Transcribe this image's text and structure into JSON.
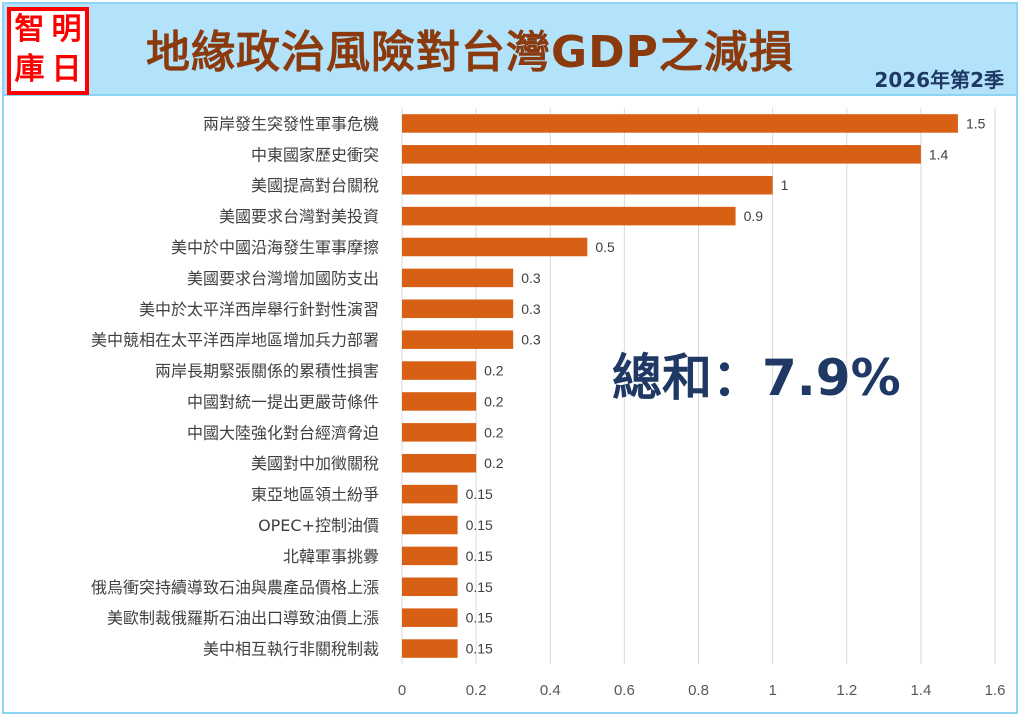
{
  "header": {
    "logo_chars": [
      "智",
      "明",
      "庫",
      "日"
    ],
    "title": "地緣政治風險對台灣GDP之減損",
    "subtitle": "2026年第2季"
  },
  "annotation": {
    "total_text": "總和：7.9%"
  },
  "colors": {
    "bar": "#d86015",
    "title": "#8b3a0e",
    "annotation": "#1f3864",
    "header_bg": "#b3e3fa",
    "logo": "#ff0000"
  },
  "chart_data": {
    "type": "bar",
    "orientation": "horizontal",
    "title": "地緣政治風險對台灣GDP之減損",
    "subtitle": "2026年第2季",
    "xlabel": "",
    "ylabel": "",
    "xlim": [
      0,
      1.6
    ],
    "xticks": [
      "0",
      "0.2",
      "0.4",
      "0.6",
      "0.8",
      "1",
      "1.2",
      "1.4",
      "1.6"
    ],
    "grid": "vertical",
    "legend": "none",
    "categories": [
      "兩岸發生突發性軍事危機",
      "中東國家歷史衝突",
      "美國提高對台關稅",
      "美國要求台灣對美投資",
      "美中於中國沿海發生軍事摩擦",
      "美國要求台灣增加國防支出",
      "美中於太平洋西岸舉行針對性演習",
      "美中競相在太平洋西岸地區增加兵力部署",
      "兩岸長期緊張關係的累積性損害",
      "中國對統一提出更嚴苛條件",
      "中國大陸強化對台經濟脅迫",
      "美國對中加徵關稅",
      "東亞地區領土紛爭",
      "OPEC+控制油價",
      "北韓軍事挑釁",
      "俄烏衝突持續導致石油與農產品價格上漲",
      "美歐制裁俄羅斯石油出口導致油價上漲",
      "美中相互執行非關稅制裁"
    ],
    "values": [
      1.5,
      1.4,
      1,
      0.9,
      0.5,
      0.3,
      0.3,
      0.3,
      0.2,
      0.2,
      0.2,
      0.2,
      0.15,
      0.15,
      0.15,
      0.15,
      0.15,
      0.15
    ],
    "data_labels": [
      "1.5",
      "1.4",
      "1",
      "0.9",
      "0.5",
      "0.3",
      "0.3",
      "0.3",
      "0.2",
      "0.2",
      "0.2",
      "0.2",
      "0.15",
      "0.15",
      "0.15",
      "0.15",
      "0.15",
      "0.15"
    ],
    "annotations": [
      "總和：7.9%"
    ]
  }
}
